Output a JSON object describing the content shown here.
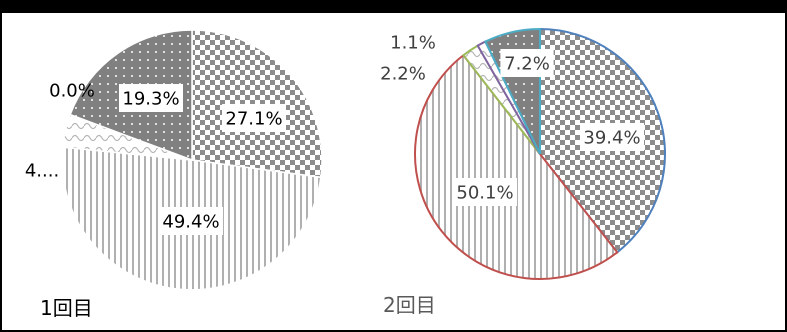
{
  "chart_data": [
    {
      "type": "pie",
      "title": "",
      "caption": "1回目",
      "slices": [
        {
          "label": "27.1%",
          "value": 27.1,
          "fill": "checker",
          "color": "#8c8c8c"
        },
        {
          "label": "49.4%",
          "value": 49.4,
          "fill": "vertical-stripes",
          "color": "#b0b0b0"
        },
        {
          "label": "4....",
          "value": 4.1,
          "fill": "scallop",
          "color": "#b5b5b5"
        },
        {
          "label": "0.0%",
          "value": 0.0,
          "fill": "none",
          "color": "#ffffff"
        },
        {
          "label": "19.3%",
          "value": 19.3,
          "fill": "dots",
          "color": "#808080"
        }
      ]
    },
    {
      "type": "pie",
      "title": "",
      "caption": "2回目",
      "slices": [
        {
          "label": "39.4%",
          "value": 39.4,
          "fill": "checker",
          "color": "#8c8c8c",
          "outline": "#4f81bd"
        },
        {
          "label": "50.1%",
          "value": 50.1,
          "fill": "vertical-stripes",
          "color": "#b0b0b0",
          "outline": "#c0504d"
        },
        {
          "label": "2.2%",
          "value": 2.2,
          "fill": "scallop",
          "color": "#b5b5b5",
          "outline": "#9bbb59"
        },
        {
          "label": "1.1%",
          "value": 1.1,
          "fill": "scallop",
          "color": "#b5b5b5",
          "outline": "#8064a2"
        },
        {
          "label": "7.2%",
          "value": 7.2,
          "fill": "dots",
          "color": "#808080",
          "outline": "#4bacc6"
        }
      ]
    }
  ]
}
